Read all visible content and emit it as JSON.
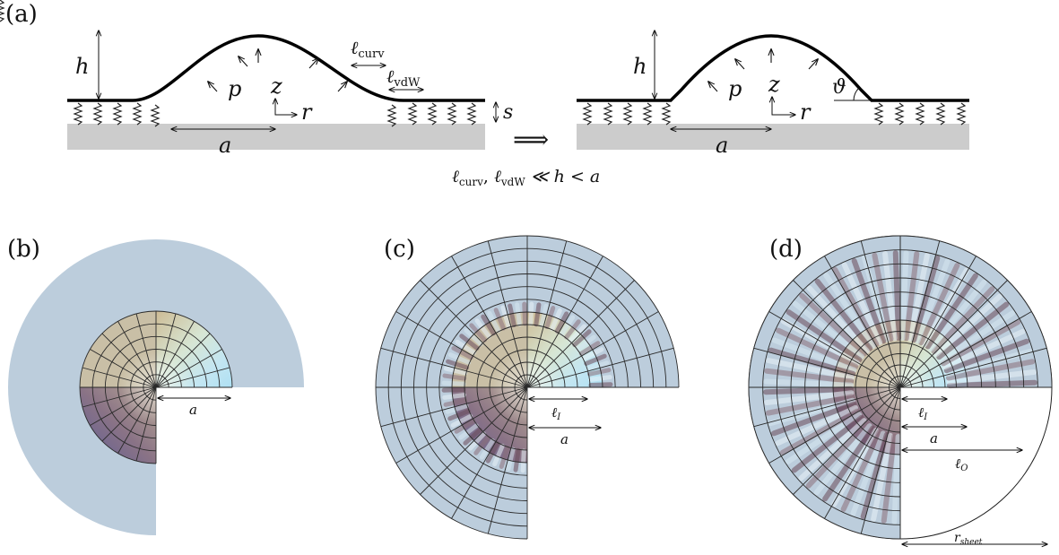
{
  "panels": {
    "a": {
      "label": "(a)",
      "left": {
        "h": "h",
        "p": "p",
        "z": "z",
        "r": "r",
        "a": "a",
        "s": "s",
        "l_curv": "ℓ",
        "l_curv_sub": "curv",
        "l_vdw": "ℓ",
        "l_vdw_sub": "vdW"
      },
      "right": {
        "h": "h",
        "p": "p",
        "z": "z",
        "r": "r",
        "a": "a",
        "theta": "ϑ"
      },
      "implies": "⟹",
      "condition": {
        "l1": "ℓ",
        "l1_sub": "curv",
        "comma": ", ",
        "l2": "ℓ",
        "l2_sub": "vdW",
        "rest": " ≪ h < a"
      }
    },
    "b": {
      "label": "(b)",
      "a": "a"
    },
    "c": {
      "label": "(c)",
      "lI": "ℓ",
      "lI_sub": "I",
      "a": "a"
    },
    "d": {
      "label": "(d)",
      "lI": "ℓ",
      "lI_sub": "I",
      "a": "a",
      "lO": "ℓ",
      "lO_sub": "O",
      "r_sheet": "r",
      "r_sheet_sub": "sheet"
    }
  },
  "colors": {
    "sheet": "#bccddc",
    "substrate": "#cccccc",
    "grid": "#2a2a2a",
    "ink": "#111111",
    "wrinkle_dark": "#6a4a5a",
    "wrinkle_light": "#e8f3f8"
  }
}
